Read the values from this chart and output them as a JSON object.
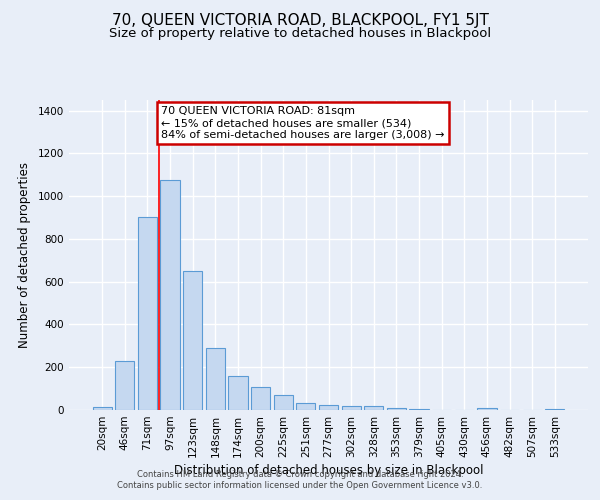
{
  "title": "70, QUEEN VICTORIA ROAD, BLACKPOOL, FY1 5JT",
  "subtitle": "Size of property relative to detached houses in Blackpool",
  "xlabel": "Distribution of detached houses by size in Blackpool",
  "ylabel": "Number of detached properties",
  "categories": [
    "20sqm",
    "46sqm",
    "71sqm",
    "97sqm",
    "123sqm",
    "148sqm",
    "174sqm",
    "200sqm",
    "225sqm",
    "251sqm",
    "277sqm",
    "302sqm",
    "328sqm",
    "353sqm",
    "379sqm",
    "405sqm",
    "430sqm",
    "456sqm",
    "482sqm",
    "507sqm",
    "533sqm"
  ],
  "values": [
    15,
    228,
    905,
    1075,
    650,
    290,
    158,
    108,
    70,
    35,
    25,
    20,
    18,
    10,
    5,
    0,
    0,
    8,
    0,
    0,
    5
  ],
  "bar_color": "#c5d8f0",
  "bar_edge_color": "#5b9bd5",
  "red_line_index": 2.5,
  "annotation_title": "70 QUEEN VICTORIA ROAD: 81sqm",
  "annotation_line1": "← 15% of detached houses are smaller (534)",
  "annotation_line2": "84% of semi-detached houses are larger (3,008) →",
  "annotation_box_facecolor": "#ffffff",
  "annotation_box_edgecolor": "#cc0000",
  "ylim": [
    0,
    1450
  ],
  "yticks": [
    0,
    200,
    400,
    600,
    800,
    1000,
    1200,
    1400
  ],
  "footnote1": "Contains HM Land Registry data © Crown copyright and database right 2024.",
  "footnote2": "Contains public sector information licensed under the Open Government Licence v3.0.",
  "background_color": "#e8eef8",
  "grid_color": "#ffffff",
  "title_fontsize": 11,
  "subtitle_fontsize": 9.5,
  "axis_label_fontsize": 8.5,
  "tick_fontsize": 7.5,
  "annotation_fontsize": 8
}
